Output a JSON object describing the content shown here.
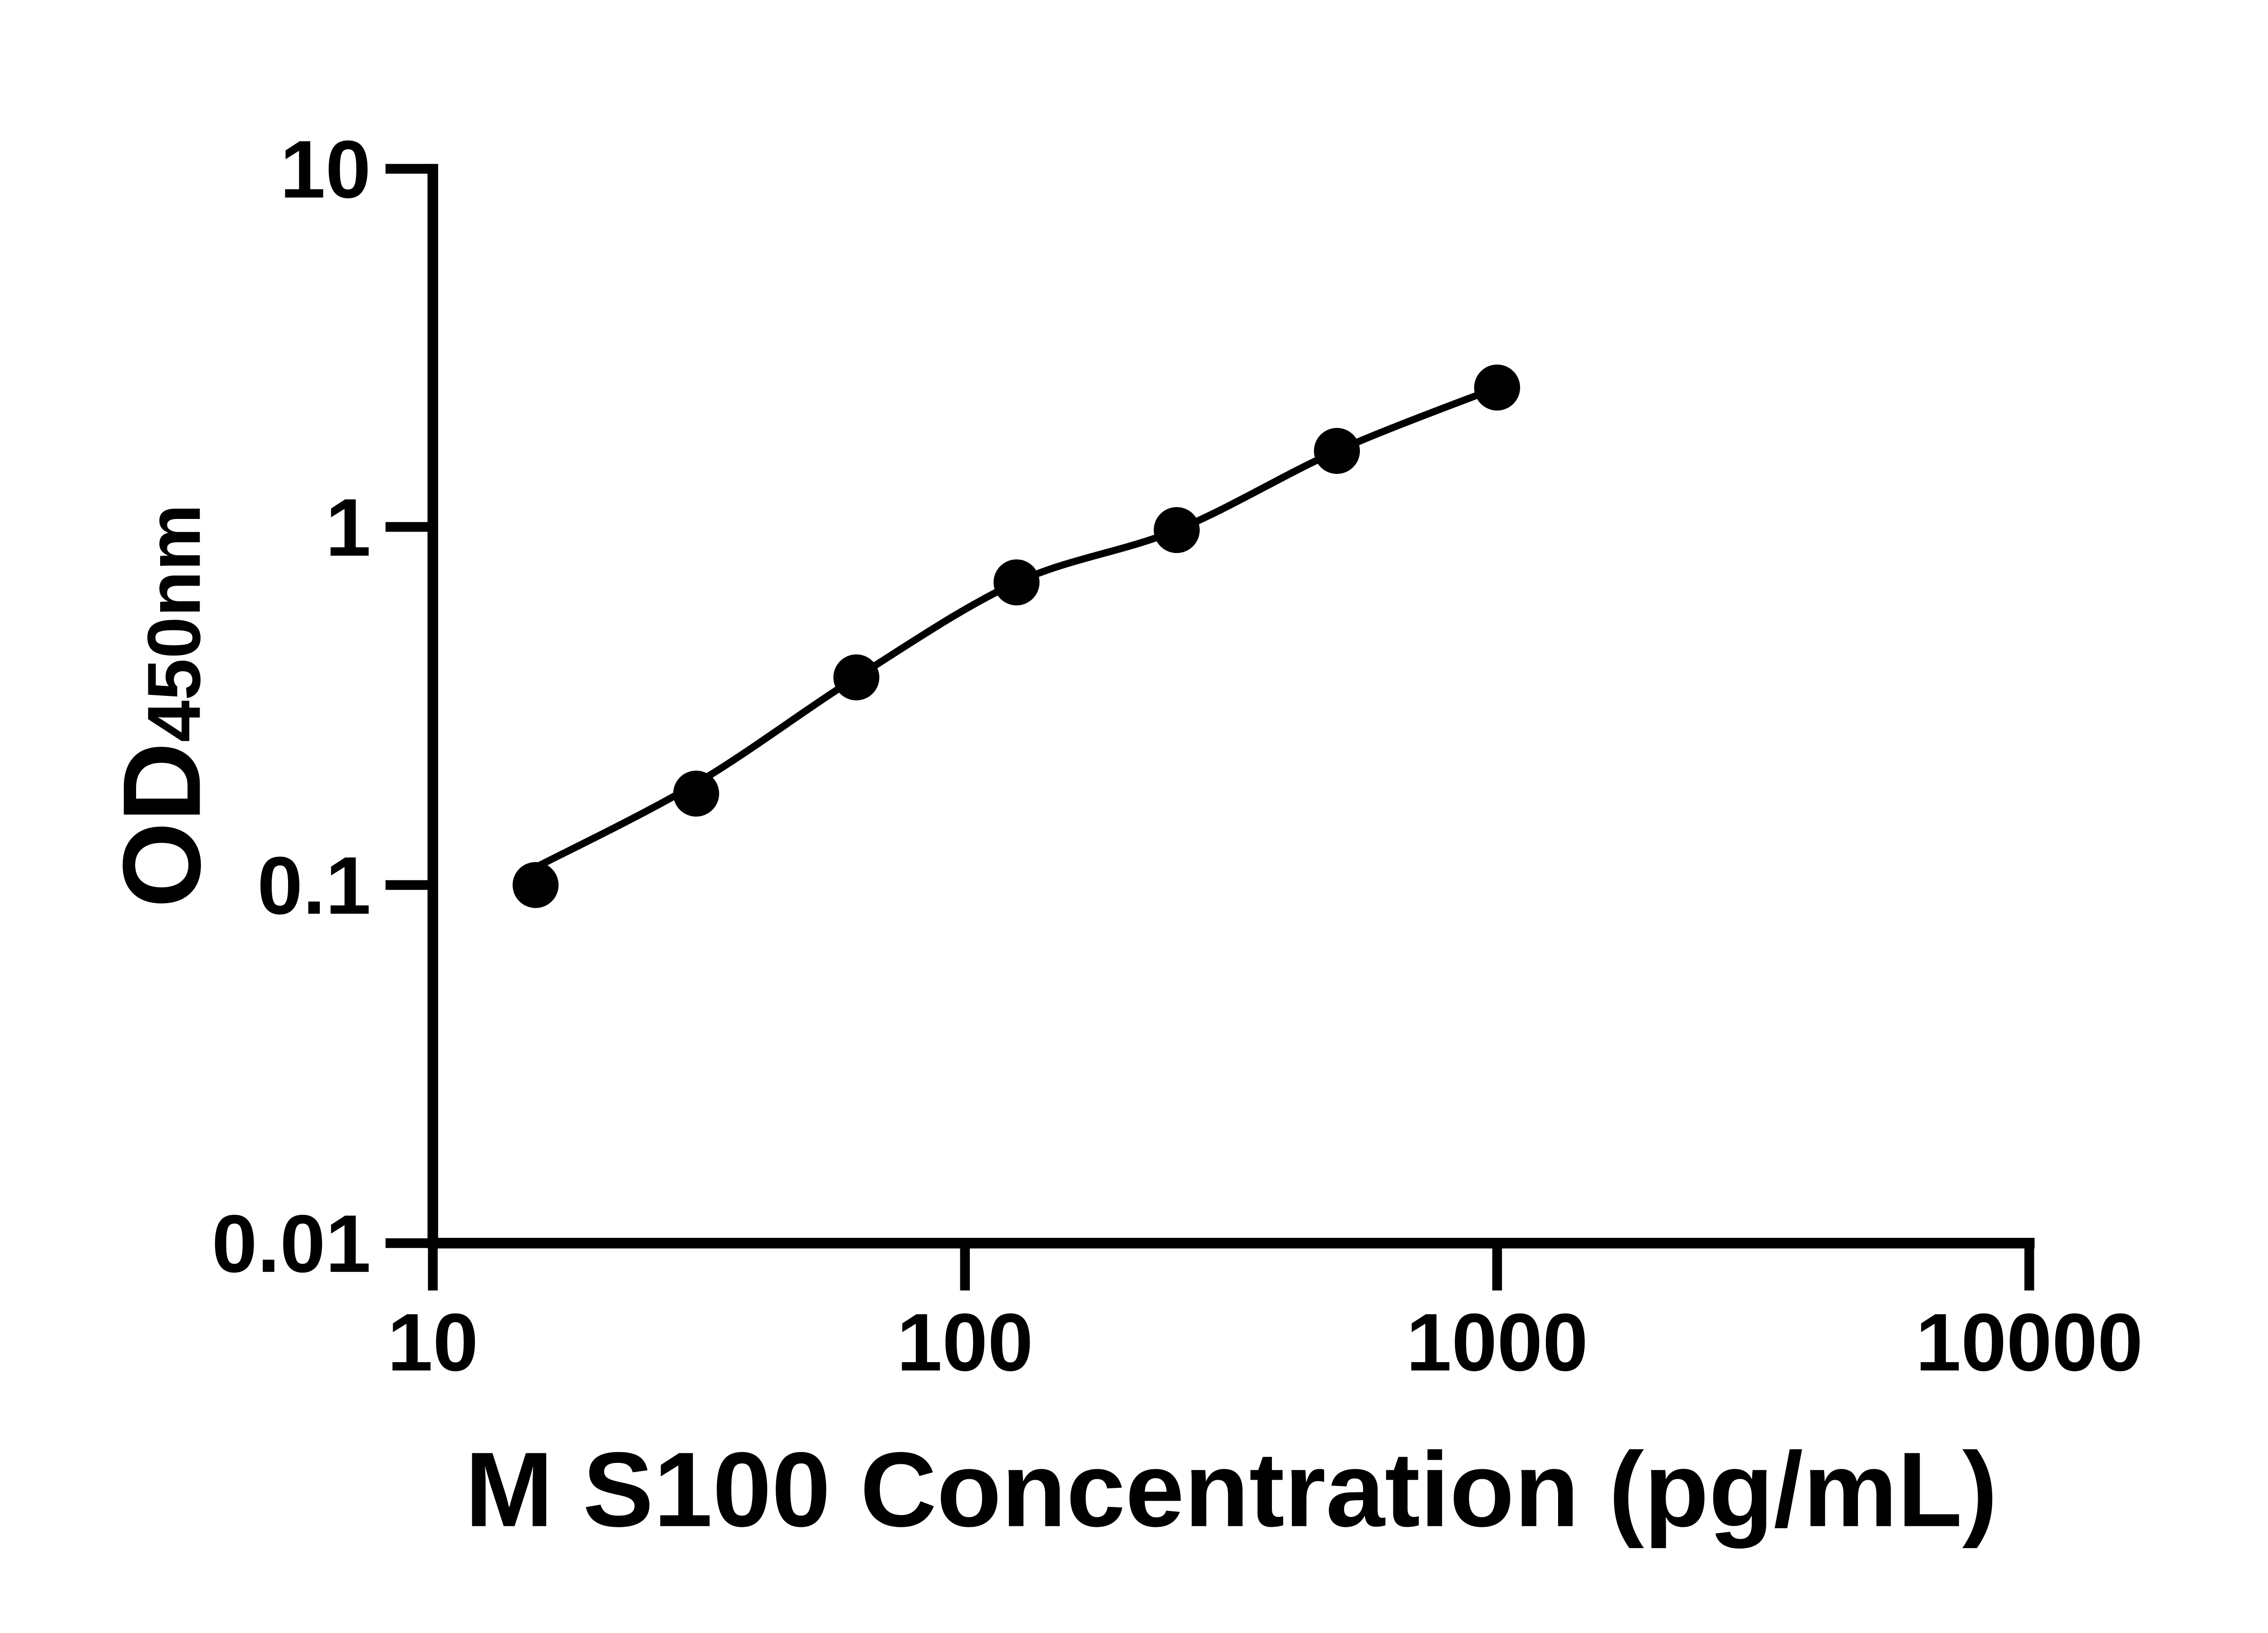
{
  "figure": {
    "background_color": "#ffffff",
    "ink_color": "#000000"
  },
  "chart_data": {
    "type": "scatter",
    "title": "",
    "xlabel": "M S100 Concentration (pg/mL)",
    "ylabel_main": "OD",
    "ylabel_sub": "450nm",
    "x_scale": "log",
    "y_scale": "log",
    "xlim": [
      10,
      10000
    ],
    "ylim": [
      0.01,
      10
    ],
    "x_ticks": [
      10,
      100,
      1000,
      10000
    ],
    "x_tick_labels": [
      "10",
      "100",
      "1000",
      "10000"
    ],
    "y_ticks": [
      0.01,
      0.1,
      1,
      10
    ],
    "y_tick_labels": [
      "0.01",
      "0.1",
      "1",
      "10"
    ],
    "grid": "off",
    "legend": "none",
    "series": [
      {
        "name": "standard-curve-points",
        "x": [
          15.6,
          31.25,
          62.5,
          125,
          250,
          500,
          1000
        ],
        "y": [
          0.1,
          0.18,
          0.38,
          0.7,
          0.98,
          1.63,
          2.45
        ]
      }
    ],
    "fit_curve": {
      "name": "fitted-standard-curve",
      "x": [
        15.6,
        31.25,
        62.5,
        125,
        250,
        500,
        1000
      ],
      "y": [
        0.112,
        0.192,
        0.38,
        0.7,
        0.98,
        1.63,
        2.45
      ]
    },
    "marker": {
      "shape": "circle",
      "color": "#000000"
    },
    "line": {
      "color": "#000000"
    }
  }
}
